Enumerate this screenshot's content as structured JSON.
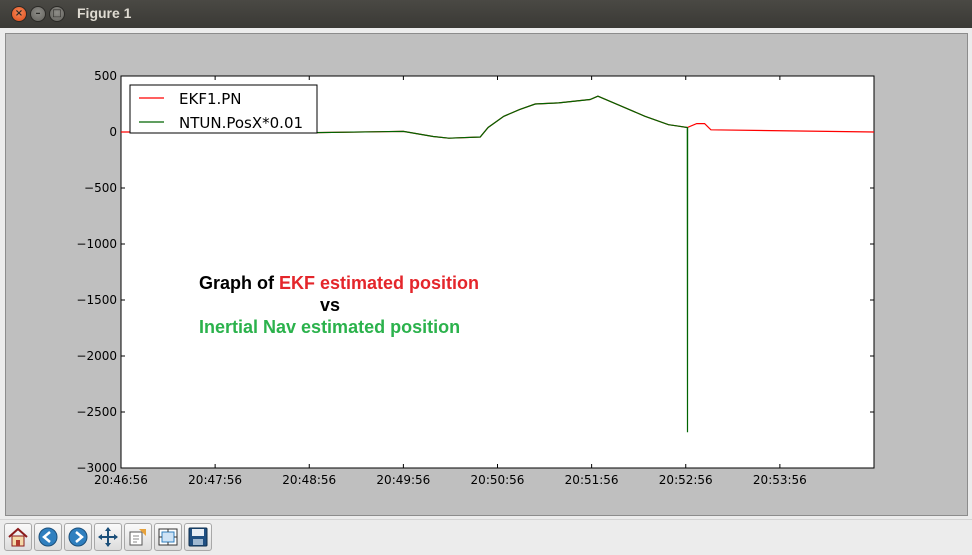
{
  "window": {
    "title": "Figure 1",
    "close_glyph": "×",
    "min_glyph": "–",
    "max_glyph": "□"
  },
  "toolbar": {
    "buttons": [
      {
        "name": "home-icon"
      },
      {
        "name": "back-icon"
      },
      {
        "name": "forward-icon"
      },
      {
        "name": "pan-icon"
      },
      {
        "name": "zoom-to-rect-icon"
      },
      {
        "name": "subplots-icon"
      },
      {
        "name": "save-icon"
      }
    ]
  },
  "annotation": {
    "line1_a": "Graph of ",
    "line1_b": "EKF estimated position",
    "line2": "vs",
    "line3": "Inertial Nav estimated position",
    "colors": {
      "black": "#000000",
      "red": "#e4262b",
      "green": "#2bb24c"
    }
  },
  "chart_data": {
    "type": "line",
    "title": "",
    "xlabel": "",
    "ylabel": "",
    "xlim": [
      "20:46:56",
      "20:54:56"
    ],
    "ylim": [
      -3000,
      500
    ],
    "xticks": [
      "20:46:56",
      "20:47:56",
      "20:48:56",
      "20:49:56",
      "20:50:56",
      "20:51:56",
      "20:52:56",
      "20:53:56"
    ],
    "yticks": [
      500,
      0,
      -500,
      -1000,
      -1500,
      -2000,
      -2500,
      -3000
    ],
    "ytick_labels": [
      "500",
      "0",
      "−500",
      "−1000",
      "−1500",
      "−2000",
      "−2500",
      "−3000"
    ],
    "grid": false,
    "legend_position": "top-left",
    "series": [
      {
        "name": "EKF1.PN",
        "color": "#ff0000",
        "x": [
          "20:46:56",
          "20:47:56",
          "20:48:56",
          "20:49:00",
          "20:49:56",
          "20:50:15",
          "20:50:25",
          "20:50:45",
          "20:50:50",
          "20:51:00",
          "20:51:10",
          "20:51:20",
          "20:51:35",
          "20:51:55",
          "20:52:00",
          "20:52:15",
          "20:52:30",
          "20:52:45",
          "20:52:50",
          "20:52:57",
          "20:53:03",
          "20:53:08",
          "20:53:12",
          "20:54:56"
        ],
        "y": [
          0,
          0,
          0,
          -5,
          5,
          -40,
          -55,
          -45,
          40,
          140,
          200,
          250,
          260,
          290,
          320,
          230,
          140,
          65,
          55,
          40,
          75,
          75,
          20,
          0
        ]
      },
      {
        "name": "NTUN.PosX*0.01",
        "color": "#006400",
        "x": [
          "20:48:56",
          "20:49:00",
          "20:49:56",
          "20:50:15",
          "20:50:25",
          "20:50:45",
          "20:50:50",
          "20:51:00",
          "20:51:10",
          "20:51:20",
          "20:51:35",
          "20:51:55",
          "20:52:00",
          "20:52:15",
          "20:52:30",
          "20:52:45",
          "20:52:50",
          "20:52:57",
          "20:52:57.1",
          "20:52:57.2"
        ],
        "y": [
          0,
          -5,
          5,
          -40,
          -55,
          -45,
          40,
          140,
          200,
          250,
          260,
          290,
          320,
          230,
          140,
          65,
          55,
          40,
          -2680,
          40
        ]
      }
    ]
  }
}
